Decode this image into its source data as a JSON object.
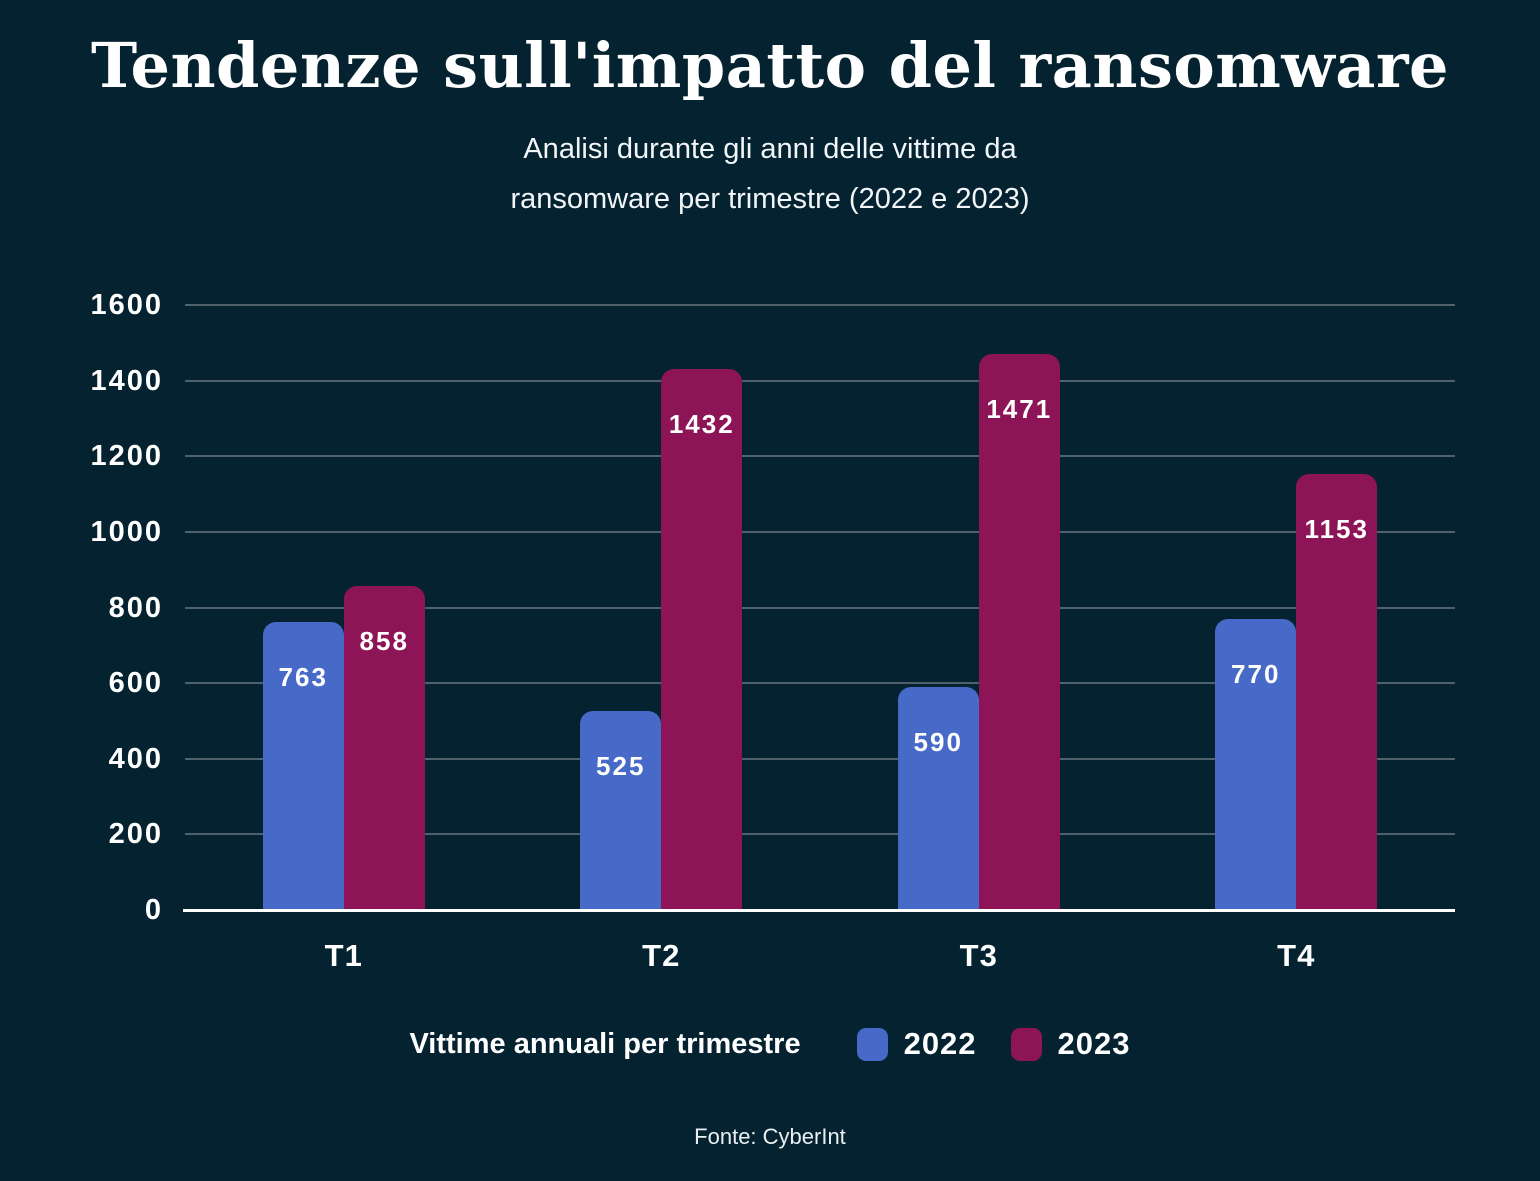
{
  "header": {
    "title": "Tendenze sull'impatto del ransomware",
    "subtitle_lines": [
      "Analisi durante gli anni delle vittime da",
      "ransomware per trimestre (2022 e 2023)"
    ]
  },
  "chart_data": {
    "type": "bar",
    "title": "Tendenze sull'impatto del ransomware",
    "subtitle": "Analisi durante gli anni delle vittime da ransomware per trimestre (2022 e 2023)",
    "categories": [
      "T1",
      "T2",
      "T3",
      "T4"
    ],
    "series": [
      {
        "name": "2022",
        "color": "#4769C7",
        "values": [
          763,
          525,
          590,
          770
        ]
      },
      {
        "name": "2023",
        "color": "#8D1456",
        "values": [
          858,
          1432,
          1471,
          1153
        ]
      }
    ],
    "xlabel": "",
    "ylabel": "",
    "ylim": [
      0,
      1600
    ],
    "ytick_step": 200,
    "grid": true,
    "value_labels": true,
    "legend_title": "Vittime annuali per trimestre",
    "legend_position": "bottom"
  },
  "legend": {
    "title": "Vittime annuali per trimestre",
    "items": [
      {
        "label": "2022",
        "color": "#4769C7"
      },
      {
        "label": "2023",
        "color": "#8D1456"
      }
    ]
  },
  "footer": {
    "source": "Fonte: CyberInt"
  },
  "colors": {
    "background": "#04222F",
    "gridline": "#4E616C",
    "axis": "#FFFFFF",
    "text": "#FFFFFF"
  }
}
